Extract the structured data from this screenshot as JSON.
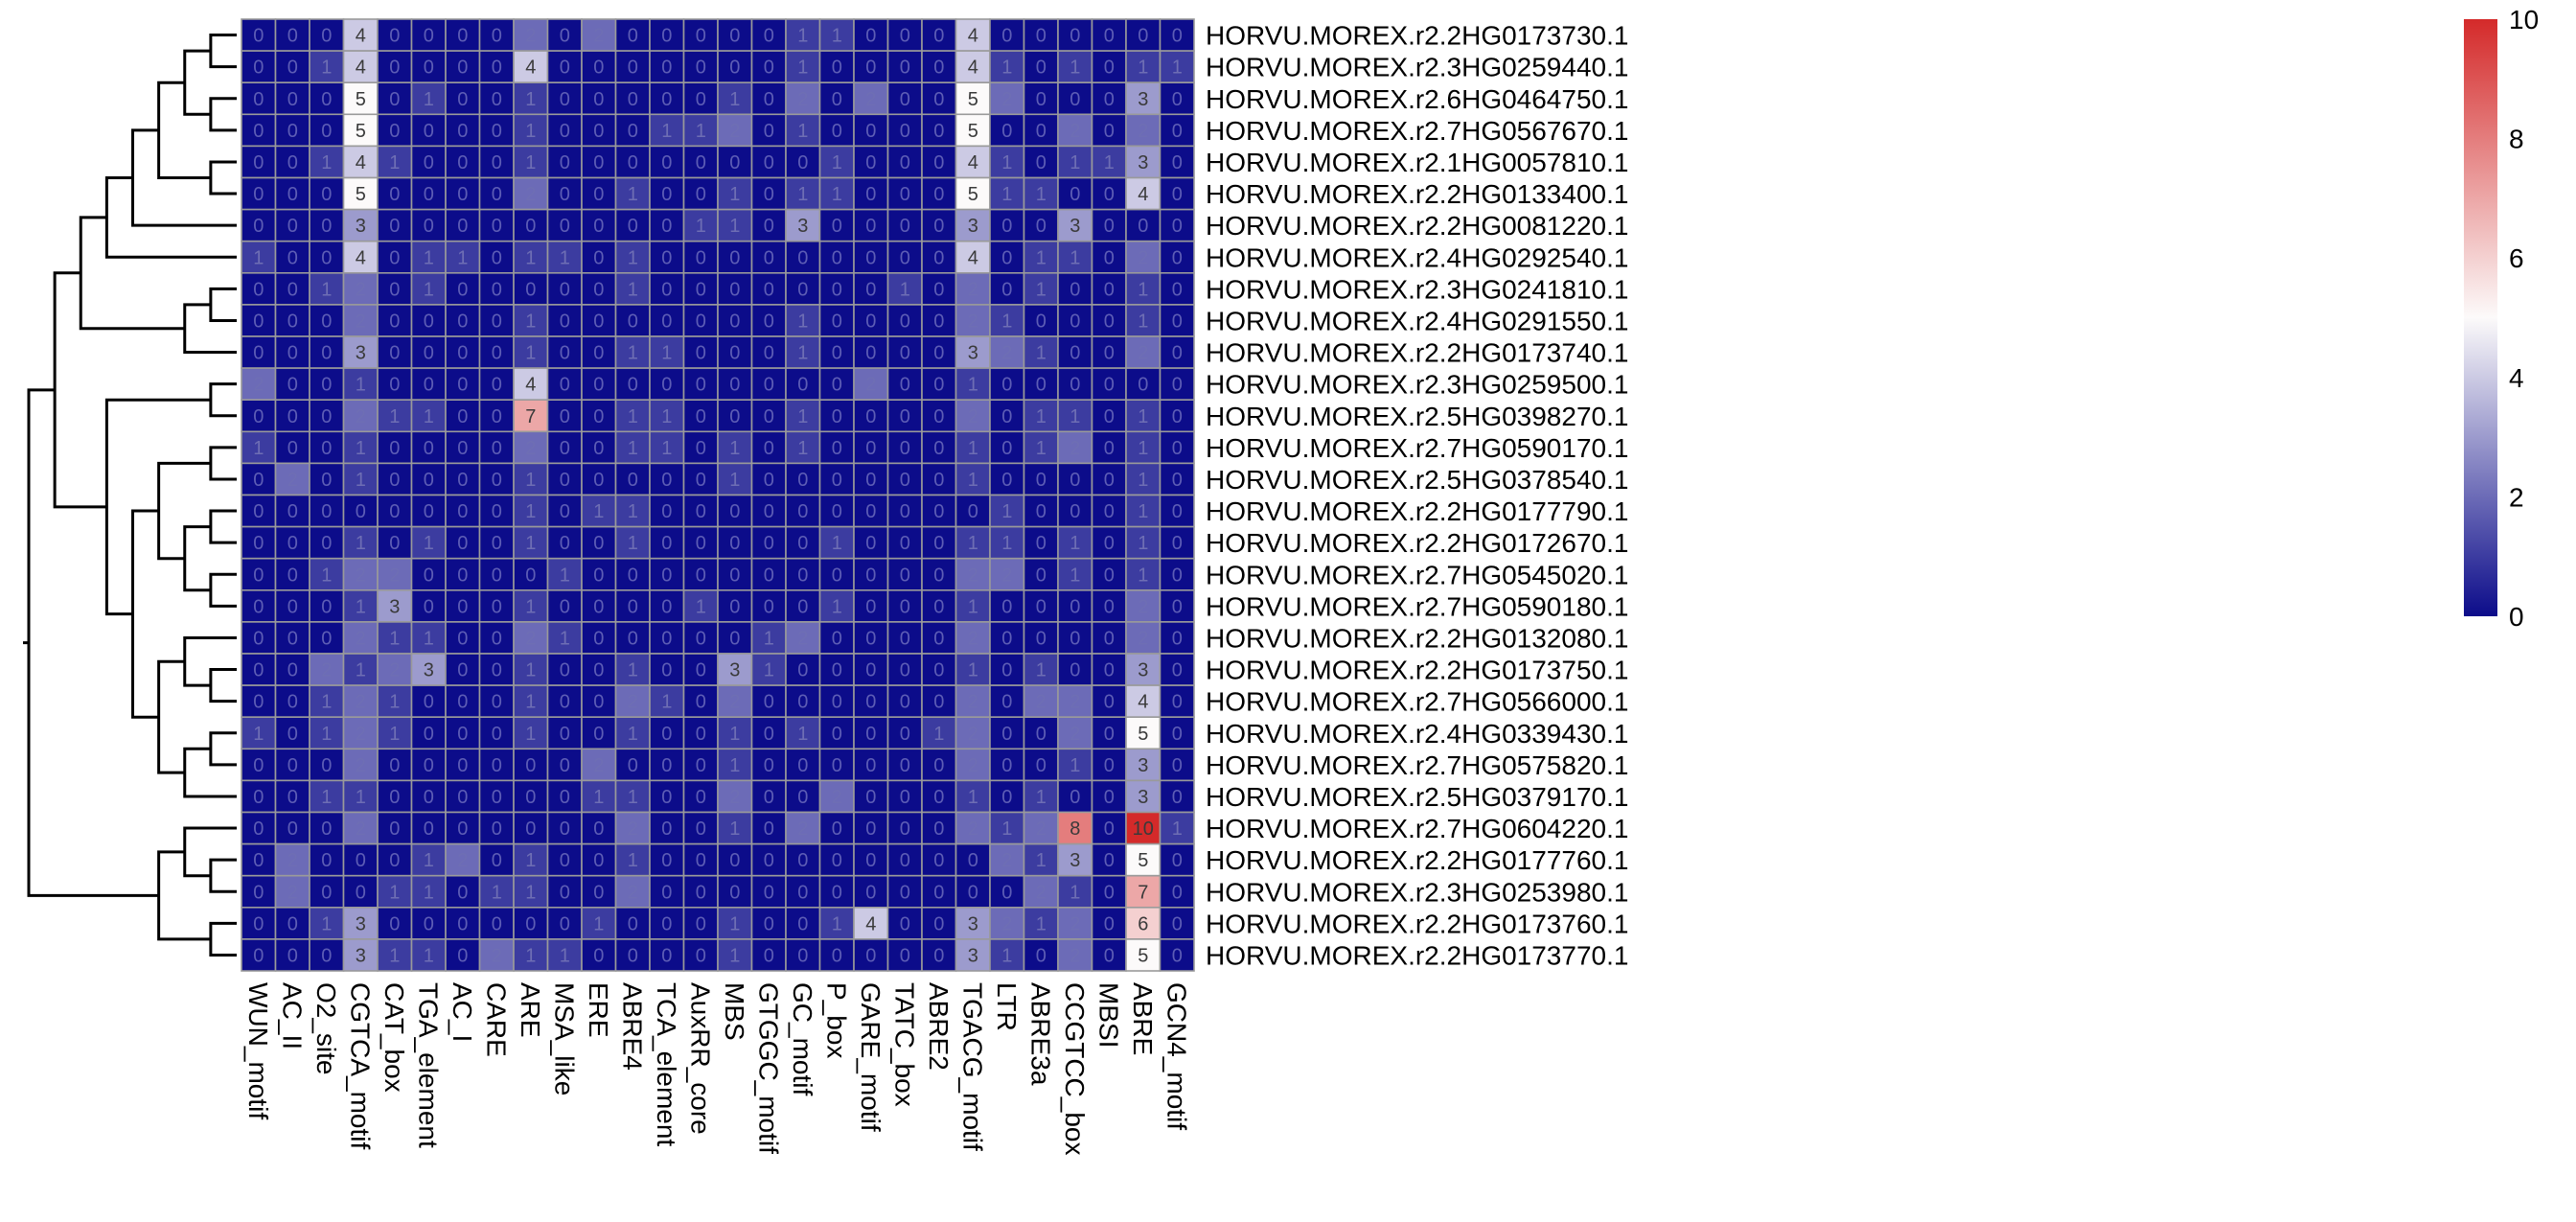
{
  "chart_data": {
    "type": "heatmap",
    "columns": [
      "WUN_motif",
      "AC_II",
      "O2_site",
      "CGTCA_motif",
      "CAT_box",
      "TGA_element",
      "AC_I",
      "CARE",
      "ARE",
      "MSA_like",
      "ERE",
      "ABRE4",
      "TCA_element",
      "AuxRR_core",
      "MBS",
      "GTGGC_motif",
      "GC_motif",
      "P_box",
      "GARE_motif",
      "TATC_box",
      "ABRE2",
      "TGACG_motif",
      "LTR",
      "ABRE3a",
      "CCGTCC_box",
      "MBSI",
      "ABRE",
      "GCN4_motif"
    ],
    "rows": [
      "HORVU.MOREX.r2.2HG0173730.1",
      "HORVU.MOREX.r2.3HG0259440.1",
      "HORVU.MOREX.r2.6HG0464750.1",
      "HORVU.MOREX.r2.7HG0567670.1",
      "HORVU.MOREX.r2.1HG0057810.1",
      "HORVU.MOREX.r2.2HG0133400.1",
      "HORVU.MOREX.r2.2HG0081220.1",
      "HORVU.MOREX.r2.4HG0292540.1",
      "HORVU.MOREX.r2.3HG0241810.1",
      "HORVU.MOREX.r2.4HG0291550.1",
      "HORVU.MOREX.r2.2HG0173740.1",
      "HORVU.MOREX.r2.3HG0259500.1",
      "HORVU.MOREX.r2.5HG0398270.1",
      "HORVU.MOREX.r2.7HG0590170.1",
      "HORVU.MOREX.r2.5HG0378540.1",
      "HORVU.MOREX.r2.2HG0177790.1",
      "HORVU.MOREX.r2.2HG0172670.1",
      "HORVU.MOREX.r2.7HG0545020.1",
      "HORVU.MOREX.r2.7HG0590180.1",
      "HORVU.MOREX.r2.2HG0132080.1",
      "HORVU.MOREX.r2.2HG0173750.1",
      "HORVU.MOREX.r2.7HG0566000.1",
      "HORVU.MOREX.r2.4HG0339430.1",
      "HORVU.MOREX.r2.7HG0575820.1",
      "HORVU.MOREX.r2.5HG0379170.1",
      "HORVU.MOREX.r2.7HG0604220.1",
      "HORVU.MOREX.r2.2HG0177760.1",
      "HORVU.MOREX.r2.3HG0253980.1",
      "HORVU.MOREX.r2.2HG0173760.1",
      "HORVU.MOREX.r2.2HG0173770.1"
    ],
    "values": [
      [
        0,
        0,
        0,
        4,
        0,
        0,
        0,
        0,
        2,
        0,
        2,
        0,
        0,
        0,
        0,
        0,
        1,
        1,
        0,
        0,
        0,
        4,
        0,
        0,
        0,
        0,
        0,
        0
      ],
      [
        0,
        0,
        1,
        4,
        0,
        0,
        0,
        0,
        4,
        0,
        0,
        0,
        0,
        0,
        0,
        0,
        1,
        0,
        0,
        0,
        0,
        4,
        1,
        0,
        1,
        0,
        1,
        1
      ],
      [
        0,
        0,
        0,
        5,
        0,
        1,
        0,
        0,
        1,
        0,
        0,
        0,
        0,
        0,
        1,
        0,
        2,
        0,
        2,
        0,
        0,
        5,
        2,
        0,
        0,
        0,
        3,
        0
      ],
      [
        0,
        0,
        0,
        5,
        0,
        0,
        0,
        0,
        1,
        0,
        0,
        0,
        1,
        1,
        2,
        0,
        1,
        0,
        0,
        0,
        0,
        5,
        0,
        0,
        2,
        0,
        2,
        0
      ],
      [
        0,
        0,
        1,
        4,
        1,
        0,
        0,
        0,
        1,
        0,
        0,
        0,
        0,
        0,
        0,
        0,
        0,
        1,
        0,
        0,
        0,
        4,
        1,
        0,
        1,
        1,
        3,
        0
      ],
      [
        0,
        0,
        0,
        5,
        0,
        0,
        0,
        0,
        2,
        0,
        0,
        1,
        0,
        0,
        1,
        0,
        1,
        1,
        0,
        0,
        0,
        5,
        1,
        1,
        0,
        0,
        4,
        0
      ],
      [
        0,
        0,
        0,
        3,
        0,
        0,
        0,
        0,
        0,
        0,
        0,
        0,
        0,
        1,
        1,
        0,
        3,
        0,
        0,
        0,
        0,
        3,
        0,
        0,
        3,
        0,
        0,
        0
      ],
      [
        1,
        0,
        0,
        4,
        0,
        1,
        1,
        0,
        1,
        1,
        0,
        1,
        0,
        0,
        0,
        0,
        0,
        0,
        0,
        0,
        0,
        4,
        0,
        1,
        1,
        0,
        2,
        0
      ],
      [
        0,
        0,
        1,
        2,
        0,
        1,
        0,
        0,
        0,
        0,
        0,
        1,
        0,
        0,
        0,
        0,
        0,
        0,
        0,
        1,
        0,
        2,
        0,
        1,
        0,
        0,
        1,
        0
      ],
      [
        0,
        0,
        0,
        2,
        0,
        0,
        0,
        0,
        1,
        0,
        0,
        0,
        0,
        0,
        0,
        0,
        1,
        0,
        0,
        0,
        0,
        2,
        1,
        0,
        0,
        0,
        1,
        0
      ],
      [
        0,
        0,
        0,
        3,
        0,
        0,
        0,
        0,
        1,
        0,
        0,
        1,
        1,
        0,
        0,
        0,
        1,
        0,
        0,
        0,
        0,
        3,
        2,
        1,
        0,
        0,
        2,
        0
      ],
      [
        2,
        0,
        0,
        1,
        0,
        0,
        0,
        0,
        4,
        0,
        0,
        0,
        0,
        0,
        0,
        0,
        0,
        0,
        2,
        0,
        0,
        1,
        0,
        0,
        0,
        0,
        0,
        0
      ],
      [
        0,
        0,
        0,
        2,
        1,
        1,
        0,
        0,
        7,
        0,
        0,
        1,
        1,
        0,
        0,
        0,
        1,
        0,
        0,
        0,
        0,
        2,
        0,
        1,
        1,
        0,
        1,
        0
      ],
      [
        1,
        0,
        0,
        1,
        0,
        0,
        0,
        0,
        2,
        0,
        0,
        1,
        1,
        0,
        1,
        0,
        1,
        0,
        0,
        0,
        0,
        1,
        0,
        1,
        2,
        0,
        1,
        0
      ],
      [
        0,
        2,
        0,
        1,
        0,
        0,
        0,
        0,
        1,
        0,
        0,
        0,
        0,
        0,
        1,
        0,
        0,
        0,
        0,
        0,
        0,
        1,
        0,
        0,
        0,
        0,
        1,
        0
      ],
      [
        0,
        0,
        0,
        0,
        0,
        0,
        0,
        0,
        1,
        0,
        1,
        1,
        0,
        0,
        0,
        0,
        0,
        0,
        0,
        0,
        0,
        0,
        1,
        0,
        0,
        0,
        1,
        0
      ],
      [
        0,
        0,
        0,
        1,
        0,
        1,
        0,
        0,
        1,
        0,
        0,
        1,
        0,
        0,
        0,
        0,
        0,
        1,
        0,
        0,
        0,
        1,
        1,
        0,
        1,
        0,
        1,
        0
      ],
      [
        0,
        0,
        1,
        2,
        2,
        0,
        0,
        0,
        0,
        1,
        0,
        0,
        0,
        0,
        0,
        0,
        0,
        0,
        0,
        0,
        0,
        2,
        2,
        0,
        1,
        0,
        1,
        0
      ],
      [
        0,
        0,
        0,
        1,
        3,
        0,
        0,
        0,
        1,
        0,
        0,
        0,
        0,
        1,
        0,
        0,
        0,
        1,
        0,
        0,
        0,
        1,
        0,
        0,
        0,
        0,
        2,
        0
      ],
      [
        0,
        0,
        0,
        2,
        1,
        1,
        0,
        0,
        2,
        1,
        0,
        0,
        0,
        0,
        0,
        1,
        2,
        0,
        0,
        0,
        0,
        2,
        0,
        0,
        0,
        0,
        2,
        0
      ],
      [
        0,
        0,
        2,
        1,
        2,
        3,
        0,
        0,
        1,
        0,
        0,
        1,
        0,
        0,
        3,
        1,
        0,
        0,
        0,
        0,
        0,
        1,
        0,
        1,
        0,
        0,
        3,
        0
      ],
      [
        0,
        0,
        1,
        2,
        1,
        0,
        0,
        0,
        1,
        0,
        0,
        2,
        1,
        0,
        2,
        0,
        0,
        0,
        0,
        0,
        0,
        2,
        0,
        2,
        2,
        0,
        4,
        0
      ],
      [
        1,
        0,
        1,
        2,
        1,
        0,
        0,
        0,
        1,
        0,
        0,
        1,
        0,
        0,
        1,
        0,
        1,
        0,
        0,
        0,
        1,
        2,
        0,
        0,
        2,
        0,
        5,
        0
      ],
      [
        0,
        0,
        0,
        2,
        0,
        0,
        0,
        0,
        0,
        0,
        2,
        0,
        0,
        0,
        1,
        0,
        0,
        0,
        0,
        0,
        0,
        2,
        0,
        0,
        1,
        0,
        3,
        0
      ],
      [
        0,
        0,
        1,
        1,
        0,
        0,
        0,
        0,
        0,
        0,
        1,
        1,
        0,
        0,
        2,
        0,
        0,
        2,
        0,
        0,
        0,
        1,
        0,
        1,
        0,
        0,
        3,
        0
      ],
      [
        0,
        0,
        0,
        2,
        0,
        0,
        0,
        0,
        0,
        0,
        0,
        2,
        0,
        0,
        1,
        0,
        2,
        0,
        0,
        0,
        0,
        2,
        1,
        2,
        8,
        0,
        10,
        1
      ],
      [
        0,
        2,
        0,
        0,
        0,
        1,
        2,
        0,
        1,
        0,
        0,
        1,
        0,
        0,
        0,
        0,
        0,
        0,
        0,
        0,
        0,
        0,
        2,
        1,
        3,
        0,
        5,
        0
      ],
      [
        0,
        2,
        0,
        0,
        1,
        1,
        0,
        1,
        1,
        0,
        0,
        2,
        0,
        0,
        0,
        0,
        0,
        0,
        0,
        0,
        0,
        0,
        0,
        2,
        1,
        0,
        7,
        0
      ],
      [
        0,
        0,
        1,
        3,
        0,
        0,
        0,
        0,
        0,
        0,
        1,
        0,
        0,
        0,
        1,
        0,
        0,
        1,
        4,
        0,
        0,
        3,
        2,
        1,
        2,
        0,
        6,
        0
      ],
      [
        0,
        0,
        0,
        3,
        1,
        1,
        0,
        2,
        1,
        1,
        0,
        0,
        0,
        0,
        1,
        0,
        0,
        0,
        0,
        0,
        0,
        3,
        1,
        0,
        2,
        0,
        5,
        0
      ]
    ],
    "color_scale": {
      "low": "#0c0c8a",
      "mid": "#fcfafa",
      "high": "#d42a2a",
      "range": [
        0,
        10
      ]
    },
    "legend_ticks": [
      0,
      2,
      4,
      6,
      8,
      10
    ],
    "row_dendrogram": true
  }
}
